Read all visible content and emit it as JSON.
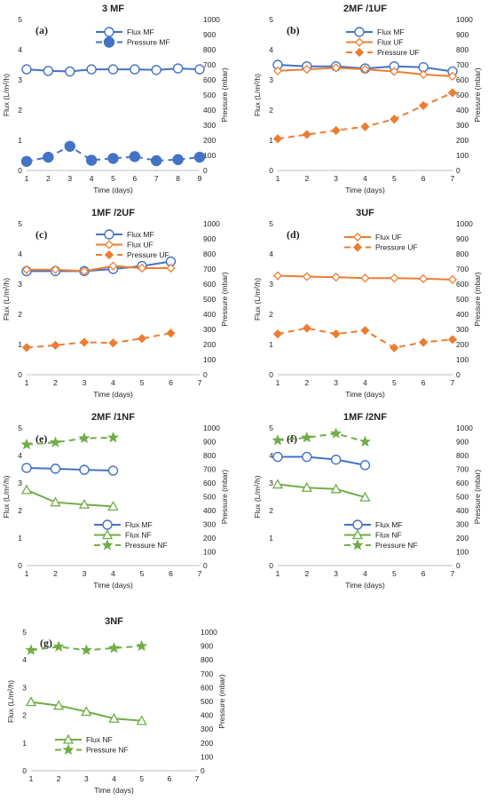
{
  "colors": {
    "MF": "#4472C4",
    "UF": "#ED7D31",
    "NF": "#70AD47"
  },
  "chart_data": [
    {
      "type": "line",
      "title": "3 MF",
      "panel_label": "(a)",
      "xlabel": "Time (days)",
      "ylabel": "Flux (L/m²/h)",
      "y2label": "Pressure (mbar)",
      "xlim": [
        1,
        9
      ],
      "xticks": [
        1,
        2,
        3,
        4,
        5,
        6,
        7,
        8,
        9
      ],
      "ylim": [
        0,
        5
      ],
      "y2lim": [
        0,
        1000
      ],
      "legend_position": "top-right",
      "series": [
        {
          "name": "Flux MF",
          "membrane": "MF",
          "kind": "flux",
          "axis": "left",
          "x": [
            1,
            2,
            3,
            4,
            5,
            6,
            7,
            8,
            9
          ],
          "values": [
            3.35,
            3.3,
            3.28,
            3.35,
            3.35,
            3.35,
            3.33,
            3.38,
            3.35
          ]
        },
        {
          "name": "Pressure MF",
          "membrane": "MF",
          "kind": "pressure",
          "axis": "right",
          "x": [
            1,
            2,
            3,
            4,
            5,
            6,
            7,
            8,
            9
          ],
          "values": [
            60,
            88,
            160,
            68,
            80,
            92,
            65,
            72,
            88
          ]
        }
      ]
    },
    {
      "type": "line",
      "title": "2MF /1UF",
      "panel_label": "(b)",
      "xlabel": "Time (days)",
      "ylabel": "Flux (L/m²/h)",
      "y2label": "Pressure (mbar)",
      "xlim": [
        1,
        7
      ],
      "xticks": [
        1,
        2,
        3,
        4,
        5,
        6,
        7
      ],
      "ylim": [
        0,
        5
      ],
      "y2lim": [
        0,
        1000
      ],
      "legend_position": "top-right",
      "series": [
        {
          "name": "Flux MF",
          "membrane": "MF",
          "kind": "flux",
          "axis": "left",
          "x": [
            1,
            2,
            3,
            4,
            5,
            6,
            7
          ],
          "values": [
            3.5,
            3.45,
            3.45,
            3.38,
            3.45,
            3.42,
            3.28
          ]
        },
        {
          "name": "Flux UF",
          "membrane": "UF",
          "kind": "flux",
          "axis": "left",
          "x": [
            1,
            2,
            3,
            4,
            5,
            6,
            7
          ],
          "values": [
            3.3,
            3.35,
            3.4,
            3.35,
            3.28,
            3.18,
            3.12
          ]
        },
        {
          "name": "Pressure UF",
          "membrane": "UF",
          "kind": "pressure",
          "axis": "right",
          "x": [
            1,
            2,
            3,
            4,
            5,
            6,
            7
          ],
          "values": [
            210,
            238,
            265,
            290,
            340,
            430,
            515
          ]
        }
      ]
    },
    {
      "type": "line",
      "title": "1MF /2UF",
      "panel_label": "(c)",
      "xlabel": "Time (days)",
      "ylabel": "Flux (L/m²/h)",
      "y2label": "Pressure (mbar)",
      "xlim": [
        1,
        7
      ],
      "xticks": [
        1,
        2,
        3,
        4,
        5,
        6,
        7
      ],
      "ylim": [
        0,
        5
      ],
      "y2lim": [
        0,
        1000
      ],
      "legend_position": "top-right",
      "series": [
        {
          "name": "Flux MF",
          "membrane": "MF",
          "kind": "flux",
          "axis": "left",
          "x": [
            1,
            2,
            3,
            4,
            5,
            6
          ],
          "values": [
            3.43,
            3.43,
            3.43,
            3.5,
            3.6,
            3.75
          ]
        },
        {
          "name": "Flux UF",
          "membrane": "UF",
          "kind": "flux",
          "axis": "left",
          "x": [
            1,
            2,
            3,
            4,
            5,
            6
          ],
          "values": [
            3.48,
            3.48,
            3.43,
            3.6,
            3.53,
            3.53
          ]
        },
        {
          "name": "Pressure UF",
          "membrane": "UF",
          "kind": "pressure",
          "axis": "right",
          "x": [
            1,
            2,
            3,
            4,
            5,
            6
          ],
          "values": [
            180,
            195,
            215,
            210,
            240,
            275
          ]
        }
      ]
    },
    {
      "type": "line",
      "title": "3UF",
      "panel_label": "(d)",
      "xlabel": "Time (days)",
      "ylabel": "Flux (L/m²/h)",
      "y2label": "Pressure (mbar)",
      "xlim": [
        1,
        7
      ],
      "xticks": [
        1,
        2,
        3,
        4,
        5,
        6,
        7
      ],
      "ylim": [
        0,
        5
      ],
      "y2lim": [
        0,
        1000
      ],
      "legend_position": "top-right",
      "series": [
        {
          "name": "Flux UF",
          "membrane": "UF",
          "kind": "flux",
          "axis": "left",
          "x": [
            1,
            2,
            3,
            4,
            5,
            6,
            7
          ],
          "values": [
            3.28,
            3.25,
            3.23,
            3.2,
            3.2,
            3.18,
            3.15
          ]
        },
        {
          "name": "Pressure UF",
          "membrane": "UF",
          "kind": "pressure",
          "axis": "right",
          "x": [
            1,
            2,
            3,
            4,
            5,
            6,
            7
          ],
          "values": [
            270,
            308,
            270,
            293,
            178,
            215,
            233
          ]
        }
      ]
    },
    {
      "type": "line",
      "title": "2MF /1NF",
      "panel_label": "(e)",
      "xlabel": "Time (days)",
      "ylabel": "Flux (L/m²/h)",
      "y2label": "Pressure (mbar)",
      "xlim": [
        1,
        7
      ],
      "xticks": [
        1,
        2,
        3,
        4,
        5,
        6,
        7
      ],
      "ylim": [
        0,
        5
      ],
      "y2lim": [
        0,
        1000
      ],
      "legend_position": "bottom-right",
      "series": [
        {
          "name": "Flux MF",
          "membrane": "MF",
          "kind": "flux",
          "axis": "left",
          "x": [
            1,
            2,
            3,
            4
          ],
          "values": [
            3.55,
            3.52,
            3.48,
            3.45
          ]
        },
        {
          "name": "Flux NF",
          "membrane": "NF",
          "kind": "flux",
          "axis": "left",
          "x": [
            1,
            2,
            3,
            4
          ],
          "values": [
            2.75,
            2.3,
            2.22,
            2.15
          ]
        },
        {
          "name": "Pressure NF",
          "membrane": "NF",
          "kind": "pressure",
          "axis": "right",
          "x": [
            1,
            2,
            3,
            4
          ],
          "values": [
            880,
            895,
            925,
            930
          ]
        }
      ]
    },
    {
      "type": "line",
      "title": "1MF /2NF",
      "panel_label": "(f)",
      "xlabel": "Time (days)",
      "ylabel": "Flux (L/m²/h)",
      "y2label": "Pressure (mbar)",
      "xlim": [
        1,
        7
      ],
      "xticks": [
        1,
        2,
        3,
        4,
        5,
        6,
        7
      ],
      "ylim": [
        0,
        5
      ],
      "y2lim": [
        0,
        1000
      ],
      "legend_position": "bottom-right",
      "series": [
        {
          "name": "Flux MF",
          "membrane": "MF",
          "kind": "flux",
          "axis": "left",
          "x": [
            1,
            2,
            3,
            4
          ],
          "values": [
            3.95,
            3.95,
            3.85,
            3.65
          ]
        },
        {
          "name": "Flux NF",
          "membrane": "NF",
          "kind": "flux",
          "axis": "left",
          "x": [
            1,
            2,
            3,
            4
          ],
          "values": [
            2.95,
            2.83,
            2.78,
            2.48
          ]
        },
        {
          "name": "Pressure NF",
          "membrane": "NF",
          "kind": "pressure",
          "axis": "right",
          "x": [
            1,
            2,
            3,
            4
          ],
          "values": [
            910,
            930,
            960,
            900
          ]
        }
      ]
    },
    {
      "type": "line",
      "title": "3NF",
      "panel_label": "(g)",
      "xlabel": "Time (days)",
      "ylabel": "Flux (L/m²/h)",
      "y2label": "Pressure (mbar)",
      "xlim": [
        1,
        7
      ],
      "xticks": [
        1,
        2,
        3,
        4,
        5,
        6,
        7
      ],
      "ylim": [
        0,
        5
      ],
      "y2lim": [
        0,
        1000
      ],
      "legend_position": "bottom-left",
      "series": [
        {
          "name": "Flux NF",
          "membrane": "NF",
          "kind": "flux",
          "axis": "left",
          "x": [
            1,
            2,
            3,
            4,
            5
          ],
          "values": [
            2.48,
            2.35,
            2.13,
            1.88,
            1.8
          ]
        },
        {
          "name": "Pressure NF",
          "membrane": "NF",
          "kind": "pressure",
          "axis": "right",
          "x": [
            1,
            2,
            3,
            4,
            5
          ],
          "values": [
            870,
            895,
            870,
            885,
            900
          ]
        }
      ]
    }
  ]
}
